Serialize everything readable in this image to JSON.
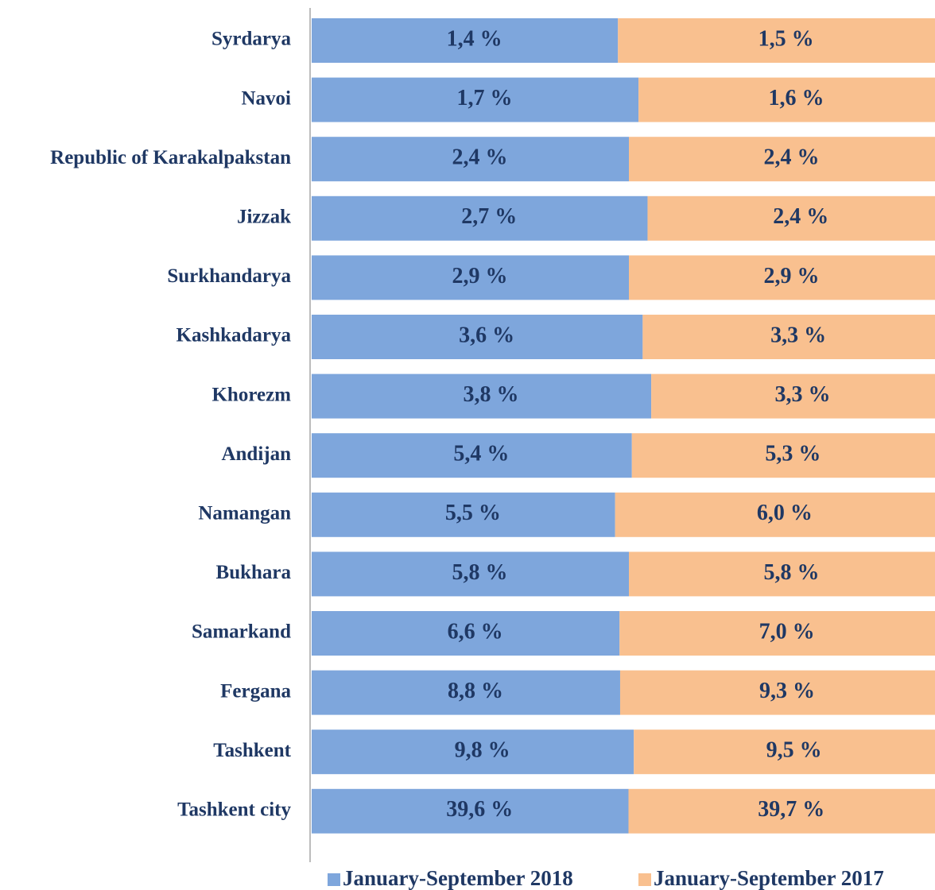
{
  "chart_data": {
    "type": "bar",
    "orientation": "horizontal",
    "stacking": "percent",
    "categories": [
      "Syrdarya",
      "Navoi",
      "Republic of Karakalpakstan",
      "Jizzak",
      "Surkhandarya",
      "Kashkadarya",
      "Khorezm",
      "Andijan",
      "Namangan",
      "Bukhara",
      "Samarkand",
      "Fergana",
      "Tashkent",
      "Tashkent city"
    ],
    "series": [
      {
        "name": "January-September 2018",
        "color": "#7ea6dc",
        "values": [
          1.4,
          1.7,
          2.4,
          2.7,
          2.9,
          3.6,
          3.8,
          5.4,
          5.5,
          5.8,
          6.6,
          8.8,
          9.8,
          39.6
        ],
        "value_labels": [
          "1,4 %",
          "1,7 %",
          "2,4 %",
          "2,7 %",
          "2,9 %",
          "3,6 %",
          "3,8 %",
          "5,4 %",
          "5,5 %",
          "5,8 %",
          "6,6 %",
          "8,8 %",
          "9,8 %",
          "39,6 %"
        ]
      },
      {
        "name": "January-September 2017",
        "color": "#f9c08f",
        "values": [
          1.5,
          1.6,
          2.4,
          2.4,
          2.9,
          3.3,
          3.3,
          5.3,
          6.0,
          5.8,
          7.0,
          9.3,
          9.5,
          39.7
        ],
        "value_labels": [
          "1,5 %",
          "1,6 %",
          "2,4 %",
          "2,4 %",
          "2,9 %",
          "3,3 %",
          "3,3 %",
          "5,3 %",
          "6,0 %",
          "5,8 %",
          "7,0 %",
          "9,3 %",
          "9,5 %",
          "39,7 %"
        ]
      }
    ],
    "legend": "bottom"
  }
}
